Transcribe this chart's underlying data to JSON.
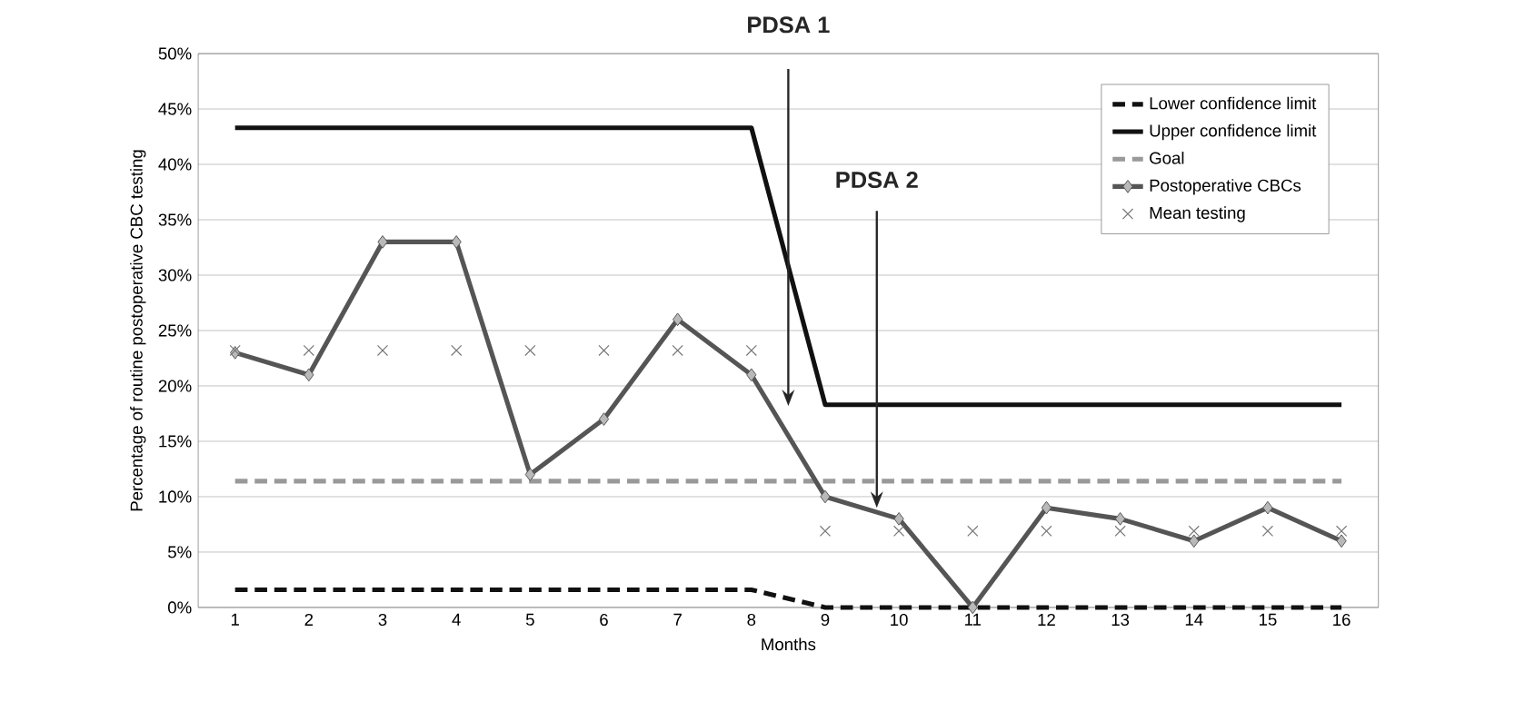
{
  "chart_data": {
    "type": "line",
    "xlabel": "Months",
    "ylabel": "Percentage of routine postoperative CBC testing",
    "categories": [
      "1",
      "2",
      "3",
      "4",
      "5",
      "6",
      "7",
      "8",
      "9",
      "10",
      "11",
      "12",
      "13",
      "14",
      "15",
      "16"
    ],
    "ylim": [
      0,
      50
    ],
    "yticks": [
      {
        "value": 0,
        "label": "0%"
      },
      {
        "value": 5,
        "label": "5%"
      },
      {
        "value": 10,
        "label": "10%"
      },
      {
        "value": 15,
        "label": "15%"
      },
      {
        "value": 20,
        "label": "20%"
      },
      {
        "value": 25,
        "label": "25%"
      },
      {
        "value": 30,
        "label": "30%"
      },
      {
        "value": 35,
        "label": "35%"
      },
      {
        "value": 40,
        "label": "40%"
      },
      {
        "value": 45,
        "label": "45%"
      },
      {
        "value": 50,
        "label": "50%"
      }
    ],
    "grid": "y",
    "legend": "top right",
    "annotations": [
      "PDSA 1",
      {
        "text": "PDSA 2",
        "y": 9
      }
    ],
    "series": [
      {
        "name": "Lower confidence limit",
        "color": "#111111",
        "line_style": "dashed",
        "marker": "none",
        "values": [
          1.6,
          1.6,
          1.6,
          1.6,
          1.6,
          1.6,
          1.6,
          1.6,
          0,
          0,
          0,
          0,
          0,
          0,
          0,
          0
        ]
      },
      {
        "name": "Upper confidence limit",
        "color": "#111111",
        "line_style": "solid",
        "marker": "none",
        "values": [
          43.3,
          43.3,
          43.3,
          43.3,
          43.3,
          43.3,
          43.3,
          43.3,
          18.3,
          18.3,
          18.3,
          18.3,
          18.3,
          18.3,
          18.3,
          18.3
        ]
      },
      {
        "name": "Goal",
        "color": "#999999",
        "line_style": "dashed",
        "marker": "none",
        "values": [
          11.4,
          11.4,
          11.4,
          11.4,
          11.4,
          11.4,
          11.4,
          11.4,
          11.4,
          11.4,
          11.4,
          11.4,
          11.4,
          11.4,
          11.4,
          11.4
        ]
      },
      {
        "name": "Postoperative CBCs",
        "color": "#555555",
        "line_style": "solid",
        "marker": "diamond",
        "values": [
          23,
          21,
          33,
          33,
          12,
          17,
          26,
          21,
          10,
          8,
          0,
          9,
          8,
          6,
          9,
          6
        ]
      },
      {
        "name": "Mean testing",
        "type": "scatter",
        "color": "#777777",
        "marker": "cross",
        "values": [
          23.2,
          23.2,
          23.2,
          23.2,
          23.2,
          23.2,
          23.2,
          23.2,
          6.9,
          6.9,
          6.9,
          6.9,
          6.9,
          6.9,
          6.9,
          6.9
        ]
      }
    ]
  }
}
